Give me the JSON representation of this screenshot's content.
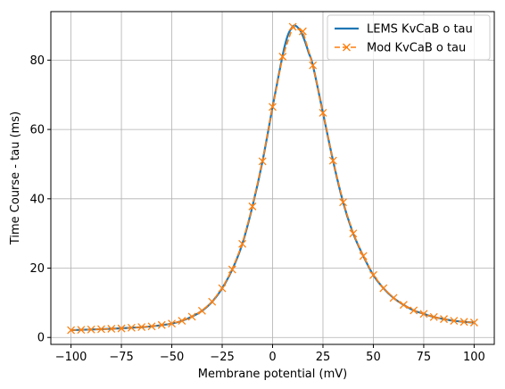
{
  "chart_data": {
    "type": "line",
    "title": "",
    "xlabel": "Membrane potential (mV)",
    "ylabel": "Time Course - tau (ms)",
    "xlim": [
      -110,
      110
    ],
    "ylim": [
      -2,
      94
    ],
    "xticks": [
      -100,
      -75,
      -50,
      -25,
      0,
      25,
      50,
      75,
      100
    ],
    "xtick_labels": [
      "−100",
      "−75",
      "−50",
      "−25",
      "0",
      "25",
      "50",
      "75",
      "100"
    ],
    "yticks": [
      0,
      20,
      40,
      60,
      80
    ],
    "ytick_labels": [
      "0",
      "20",
      "40",
      "60",
      "80"
    ],
    "grid": true,
    "legend_position": "top-right",
    "series": [
      {
        "name": "LEMS KvCaB o tau",
        "color": "#1f77b4",
        "style": "solid",
        "marker": "none",
        "x": [
          -100,
          -90,
          -80,
          -70,
          -60,
          -50,
          -45,
          -40,
          -35,
          -30,
          -25,
          -20,
          -15,
          -10,
          -5,
          0,
          2,
          4,
          6,
          8,
          10,
          11,
          12,
          14,
          16,
          18,
          20,
          25,
          30,
          35,
          40,
          45,
          50,
          55,
          60,
          65,
          70,
          75,
          80,
          85,
          90,
          95,
          100
        ],
        "y": [
          2.1,
          2.3,
          2.5,
          2.8,
          3.2,
          4.0,
          4.8,
          6.0,
          7.7,
          10.3,
          14.2,
          19.6,
          27.0,
          37.8,
          50.8,
          66.5,
          72.5,
          78.5,
          84.0,
          87.8,
          89.7,
          90.0,
          89.7,
          88.3,
          85.5,
          82.0,
          78.5,
          64.8,
          51.0,
          39.0,
          30.0,
          23.5,
          18.0,
          14.2,
          11.4,
          9.4,
          7.8,
          6.8,
          5.9,
          5.3,
          4.8,
          4.5,
          4.3
        ]
      },
      {
        "name": "Mod KvCaB o tau",
        "color": "#ff7f0e",
        "style": "dashed",
        "marker": "x",
        "x": [
          -100,
          -95,
          -90,
          -85,
          -80,
          -75,
          -70,
          -65,
          -60,
          -55,
          -50,
          -45,
          -40,
          -35,
          -30,
          -25,
          -20,
          -15,
          -10,
          -5,
          0,
          5,
          10,
          15,
          20,
          25,
          30,
          35,
          40,
          45,
          50,
          55,
          60,
          65,
          70,
          75,
          80,
          85,
          90,
          95,
          100
        ],
        "y": [
          2.1,
          2.2,
          2.3,
          2.4,
          2.5,
          2.6,
          2.8,
          3.0,
          3.2,
          3.6,
          4.0,
          4.8,
          6.0,
          7.7,
          10.3,
          14.2,
          19.6,
          27.0,
          37.8,
          50.8,
          66.5,
          81.0,
          89.6,
          88.3,
          78.5,
          64.8,
          51.0,
          39.0,
          30.0,
          23.5,
          18.0,
          14.2,
          11.4,
          9.4,
          7.8,
          6.8,
          5.9,
          5.3,
          4.8,
          4.5,
          4.3
        ]
      }
    ]
  }
}
